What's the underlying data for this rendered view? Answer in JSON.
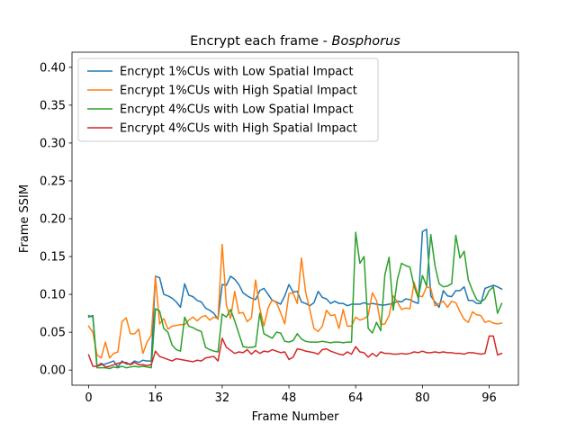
{
  "chart_data": {
    "type": "line",
    "title": "Encrypt each frame - ",
    "title_emph": "Bosphorus",
    "xlabel": "Frame Number",
    "ylabel": "Frame SSIM",
    "xlim": [
      -4,
      103
    ],
    "ylim": [
      -0.02,
      0.42
    ],
    "xticks": [
      0,
      16,
      32,
      48,
      64,
      80,
      96
    ],
    "yticks": [
      0.0,
      0.05,
      0.1,
      0.15,
      0.2,
      0.25,
      0.3,
      0.35,
      0.4
    ],
    "grid": false,
    "legend_position": "upper-left",
    "series": [
      {
        "name": "Encrypt 1%CUs with Low Spatial Impact",
        "color": "#1f77b4",
        "values": [
          0.07,
          0.072,
          0.005,
          0.007,
          0.008,
          0.01,
          0.012,
          0.004,
          0.012,
          0.008,
          0.008,
          0.012,
          0.01,
          0.013,
          0.012,
          0.012,
          0.124,
          0.122,
          0.1,
          0.098,
          0.095,
          0.09,
          0.083,
          0.114,
          0.099,
          0.097,
          0.092,
          0.09,
          0.082,
          0.079,
          0.075,
          0.067,
          0.113,
          0.112,
          0.124,
          0.12,
          0.113,
          0.102,
          0.098,
          0.095,
          0.093,
          0.105,
          0.108,
          0.1,
          0.092,
          0.09,
          0.087,
          0.098,
          0.113,
          0.103,
          0.104,
          0.09,
          0.088,
          0.085,
          0.089,
          0.104,
          0.096,
          0.094,
          0.088,
          0.091,
          0.088,
          0.088,
          0.085,
          0.087,
          0.087,
          0.087,
          0.089,
          0.087,
          0.088,
          0.087,
          0.086,
          0.086,
          0.087,
          0.088,
          0.091,
          0.09,
          0.094,
          0.093,
          0.09,
          0.088,
          0.183,
          0.186,
          0.098,
          0.09,
          0.083,
          0.105,
          0.098,
          0.097,
          0.105,
          0.105,
          0.11,
          0.092,
          0.092,
          0.088,
          0.088,
          0.108,
          0.11,
          0.112,
          0.11,
          0.107
        ]
      },
      {
        "name": "Encrypt 1%CUs with High Spatial Impact",
        "color": "#ff7f0e",
        "values": [
          0.058,
          0.05,
          0.02,
          0.016,
          0.037,
          0.016,
          0.022,
          0.024,
          0.064,
          0.069,
          0.048,
          0.048,
          0.054,
          0.022,
          0.037,
          0.046,
          0.123,
          0.061,
          0.068,
          0.054,
          0.058,
          0.059,
          0.06,
          0.06,
          0.066,
          0.07,
          0.065,
          0.07,
          0.072,
          0.066,
          0.07,
          0.068,
          0.166,
          0.086,
          0.068,
          0.104,
          0.075,
          0.076,
          0.064,
          0.069,
          0.119,
          0.082,
          0.058,
          0.082,
          0.093,
          0.089,
          0.076,
          0.061,
          0.101,
          0.102,
          0.088,
          0.148,
          0.103,
          0.08,
          0.055,
          0.051,
          0.058,
          0.079,
          0.072,
          0.073,
          0.055,
          0.08,
          0.058,
          0.058,
          0.07,
          0.066,
          0.068,
          0.072,
          0.102,
          0.092,
          0.06,
          0.061,
          0.072,
          0.098,
          0.09,
          0.08,
          0.082,
          0.081,
          0.116,
          0.098,
          0.097,
          0.11,
          0.108,
          0.085,
          0.088,
          0.091,
          0.083,
          0.091,
          0.089,
          0.077,
          0.067,
          0.063,
          0.077,
          0.073,
          0.072,
          0.063,
          0.065,
          0.062,
          0.061,
          0.062
        ]
      },
      {
        "name": "Encrypt 4%CUs with Low Spatial Impact",
        "color": "#2ca02c",
        "values": [
          0.072,
          0.07,
          0.003,
          0.003,
          0.003,
          0.002,
          0.004,
          0.003,
          0.005,
          0.003,
          0.004,
          0.005,
          0.004,
          0.005,
          0.004,
          0.003,
          0.081,
          0.078,
          0.055,
          0.05,
          0.033,
          0.027,
          0.025,
          0.07,
          0.058,
          0.056,
          0.053,
          0.051,
          0.03,
          0.027,
          0.025,
          0.024,
          0.074,
          0.07,
          0.08,
          0.065,
          0.048,
          0.031,
          0.03,
          0.03,
          0.031,
          0.075,
          0.048,
          0.045,
          0.042,
          0.05,
          0.049,
          0.038,
          0.037,
          0.039,
          0.048,
          0.041,
          0.038,
          0.037,
          0.037,
          0.037,
          0.038,
          0.037,
          0.036,
          0.037,
          0.037,
          0.036,
          0.037,
          0.037,
          0.182,
          0.141,
          0.15,
          0.055,
          0.049,
          0.063,
          0.052,
          0.126,
          0.149,
          0.079,
          0.12,
          0.141,
          0.138,
          0.136,
          0.111,
          0.095,
          0.125,
          0.111,
          0.179,
          0.138,
          0.114,
          0.11,
          0.111,
          0.114,
          0.178,
          0.148,
          0.157,
          0.119,
          0.105,
          0.093,
          0.09,
          0.094,
          0.105,
          0.11,
          0.075,
          0.088
        ]
      },
      {
        "name": "Encrypt 4%CUs with High Spatial Impact",
        "color": "#d62728",
        "values": [
          0.02,
          0.005,
          0.005,
          0.009,
          0.004,
          0.005,
          0.007,
          0.009,
          0.01,
          0.01,
          0.007,
          0.01,
          0.007,
          0.007,
          0.006,
          0.007,
          0.025,
          0.018,
          0.016,
          0.014,
          0.012,
          0.015,
          0.014,
          0.013,
          0.012,
          0.011,
          0.013,
          0.012,
          0.016,
          0.017,
          0.018,
          0.012,
          0.042,
          0.03,
          0.026,
          0.022,
          0.024,
          0.023,
          0.027,
          0.021,
          0.026,
          0.022,
          0.025,
          0.024,
          0.027,
          0.025,
          0.023,
          0.024,
          0.014,
          0.017,
          0.028,
          0.027,
          0.025,
          0.024,
          0.023,
          0.021,
          0.027,
          0.028,
          0.025,
          0.023,
          0.021,
          0.02,
          0.024,
          0.021,
          0.031,
          0.024,
          0.023,
          0.017,
          0.022,
          0.018,
          0.024,
          0.022,
          0.022,
          0.021,
          0.021,
          0.022,
          0.021,
          0.022,
          0.024,
          0.023,
          0.025,
          0.023,
          0.023,
          0.024,
          0.023,
          0.024,
          0.023,
          0.023,
          0.022,
          0.022,
          0.021,
          0.023,
          0.023,
          0.022,
          0.021,
          0.022,
          0.045,
          0.045,
          0.02,
          0.022
        ]
      }
    ]
  }
}
